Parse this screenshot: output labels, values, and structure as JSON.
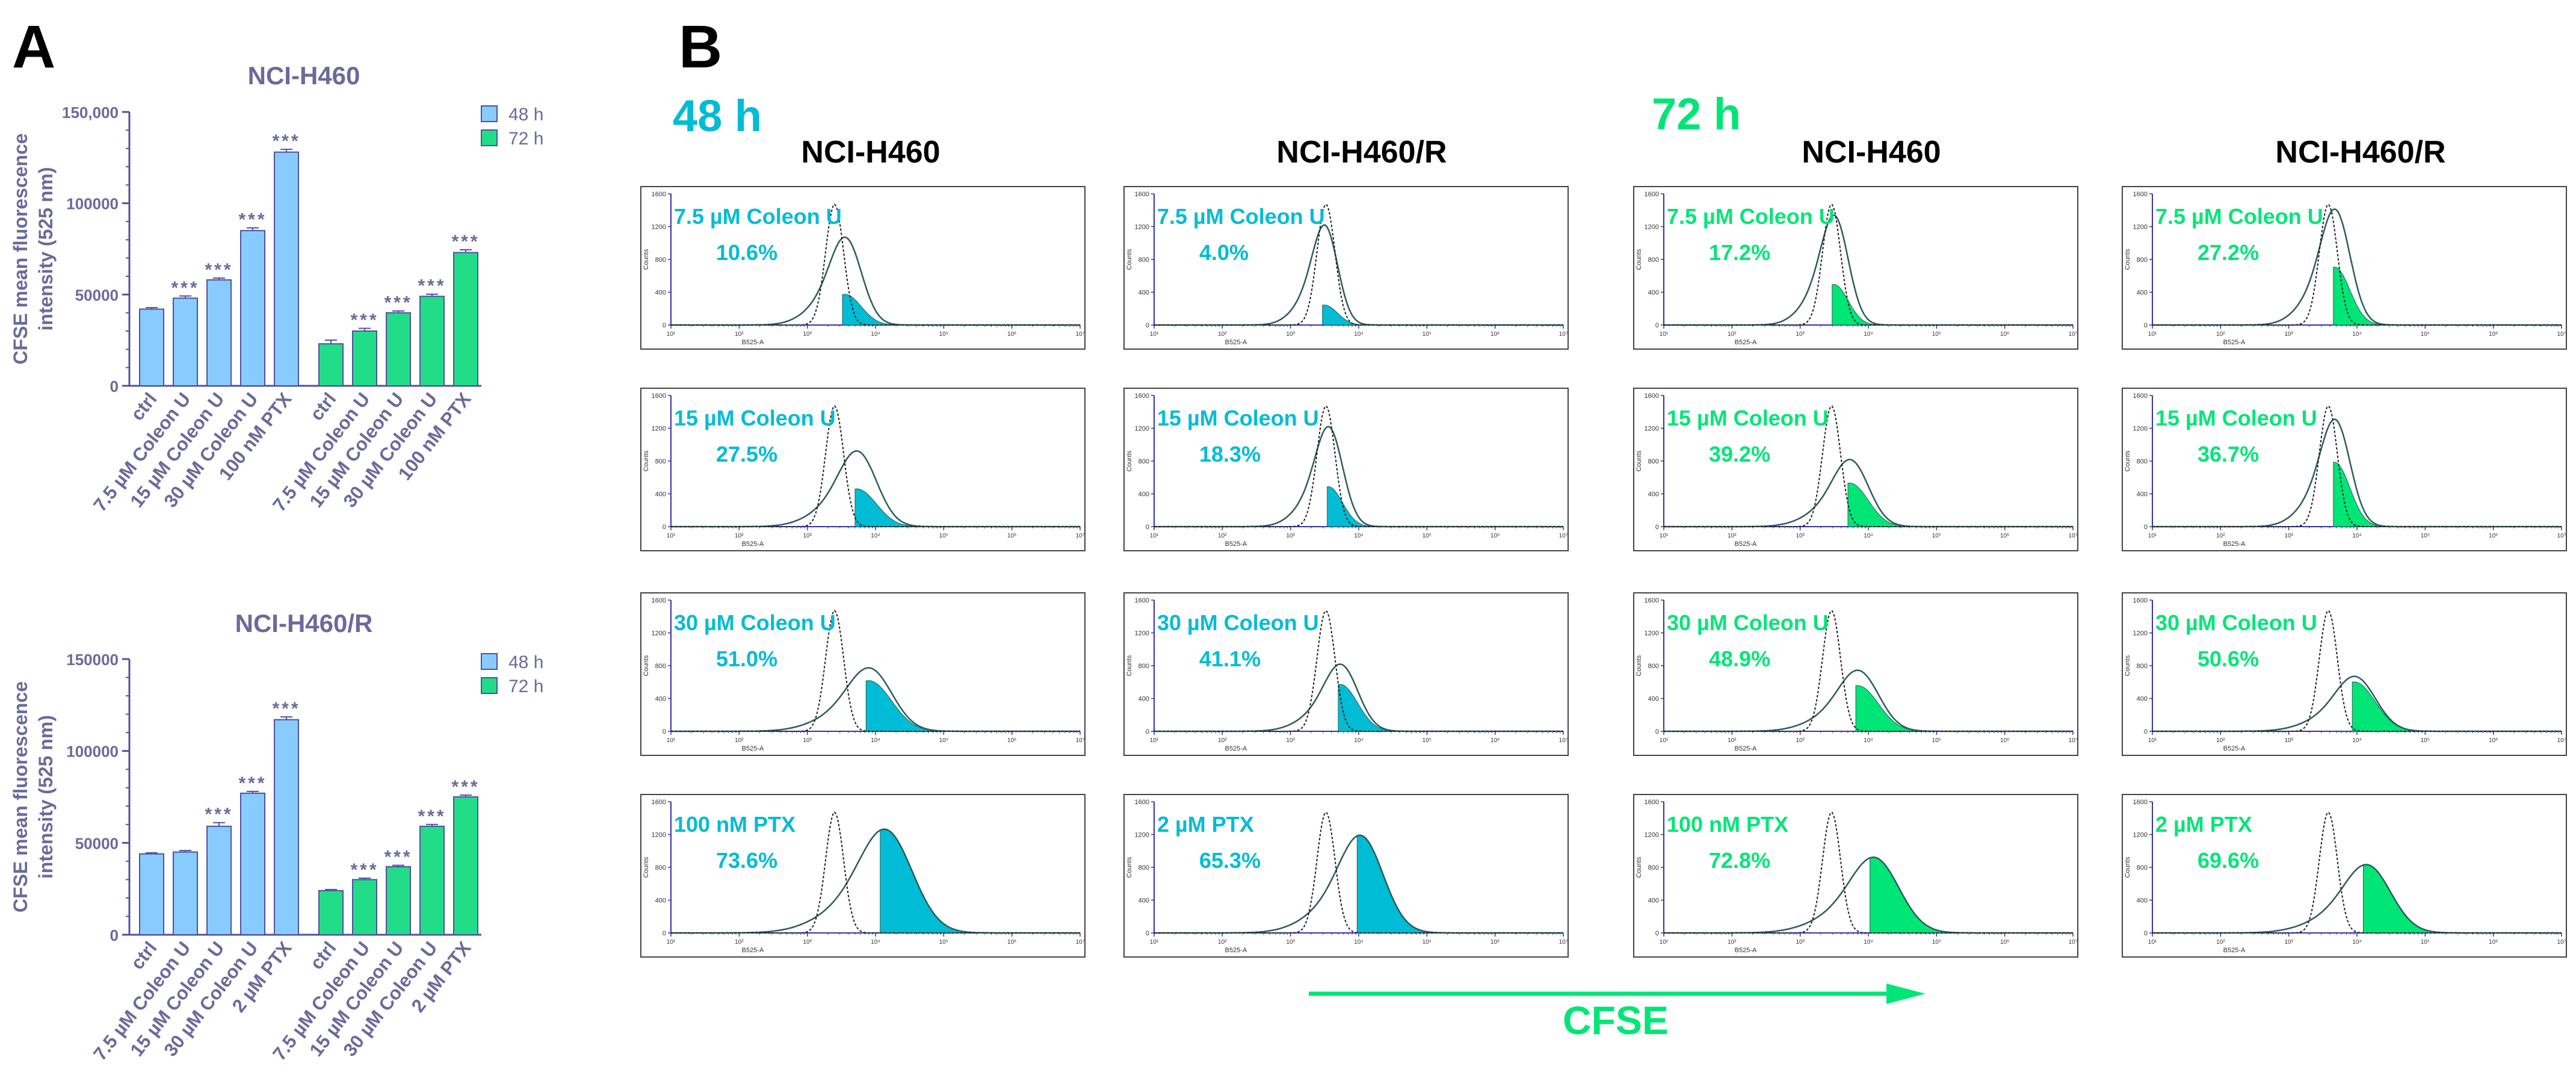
{
  "panel_a": {
    "label": "A",
    "ylabel_line1": "CFSE mean fluorescence",
    "ylabel_line2": "intensity (525 nm)",
    "legend": [
      "48 h",
      "72 h"
    ],
    "significance": "***"
  },
  "panel_b": {
    "label": "B",
    "time_labels": [
      "48 h",
      "72 h"
    ],
    "column_titles": [
      "NCI-H460",
      "NCI-H460/R",
      "NCI-H460",
      "NCI-H460/R"
    ],
    "x_axis_label": "CFSE",
    "hist_xlabel": "B525-A",
    "hist_ylabel": "Counts",
    "hist_yticks": [
      "0",
      "400",
      "800",
      "1200",
      "1600"
    ],
    "hist_xticks": [
      "10¹",
      "10²",
      "10³",
      "10⁴",
      "10⁵",
      "10⁶",
      "10⁷"
    ],
    "rows": [
      [
        {
          "treatment": "7.5 µM Coleon U",
          "percent": "10.6%",
          "ctrl_peak": 0.4,
          "treated_peak": 0.43,
          "gated": 0.3,
          "height": 0.72
        },
        {
          "treatment": "7.5 µM Coleon U",
          "percent": "4.0%",
          "ctrl_peak": 0.42,
          "treated_peak": 0.42,
          "gated": 0.15,
          "height": 0.82
        },
        {
          "treatment": "7.5 µM Coleon U",
          "percent": "17.2%",
          "ctrl_peak": 0.41,
          "treated_peak": 0.42,
          "gated": 0.32,
          "height": 0.9
        },
        {
          "treatment": "7.5 µM Coleon U",
          "percent": "27.2%",
          "ctrl_peak": 0.43,
          "treated_peak": 0.45,
          "gated": 0.45,
          "height": 0.95
        }
      ],
      [
        {
          "treatment": "15 µM Coleon U",
          "percent": "27.5%",
          "ctrl_peak": 0.4,
          "treated_peak": 0.46,
          "gated": 0.45,
          "height": 0.62
        },
        {
          "treatment": "15 µM Coleon U",
          "percent": "18.3%",
          "ctrl_peak": 0.42,
          "treated_peak": 0.43,
          "gated": 0.35,
          "height": 0.82
        },
        {
          "treatment": "15 µM Coleon U",
          "percent": "39.2%",
          "ctrl_peak": 0.41,
          "treated_peak": 0.46,
          "gated": 0.6,
          "height": 0.55
        },
        {
          "treatment": "15 µM Coleon U",
          "percent": "36.7%",
          "ctrl_peak": 0.43,
          "treated_peak": 0.45,
          "gated": 0.55,
          "height": 0.88
        }
      ],
      [
        {
          "treatment": "30 µM Coleon U",
          "percent": "51.0%",
          "ctrl_peak": 0.4,
          "treated_peak": 0.49,
          "gated": 0.75,
          "height": 0.52
        },
        {
          "treatment": "30 µM Coleon U",
          "percent": "41.1%",
          "ctrl_peak": 0.42,
          "treated_peak": 0.46,
          "gated": 0.65,
          "height": 0.55
        },
        {
          "treatment": "30 µM Coleon U",
          "percent": "48.9%",
          "ctrl_peak": 0.41,
          "treated_peak": 0.48,
          "gated": 0.7,
          "height": 0.5
        },
        {
          "treatment": "30 µM Coleon U",
          "percent": "50.6%",
          "ctrl_peak": 0.43,
          "treated_peak": 0.5,
          "gated": 0.85,
          "height": 0.45
        }
      ],
      [
        {
          "treatment": "100 nM PTX",
          "percent": "73.6%",
          "ctrl_peak": 0.4,
          "treated_peak": 0.53,
          "gated": 0.95,
          "height": 0.85
        },
        {
          "treatment": "2 µM PTX",
          "percent": "65.3%",
          "ctrl_peak": 0.42,
          "treated_peak": 0.51,
          "gated": 0.95,
          "height": 0.8
        },
        {
          "treatment": "100 nM PTX",
          "percent": "72.8%",
          "ctrl_peak": 0.41,
          "treated_peak": 0.52,
          "gated": 0.95,
          "height": 0.62
        },
        {
          "treatment": "2 µM PTX",
          "percent": "69.6%",
          "ctrl_peak": 0.43,
          "treated_peak": 0.53,
          "gated": 0.95,
          "height": 0.56
        }
      ]
    ]
  },
  "colors": {
    "text_purple": "#6a6a9c",
    "bar_48h": "#88ccff",
    "bar_72h": "#22dd88",
    "bar_edge": "#5050a0",
    "cyan": "#00bcd4",
    "green": "#00e676",
    "hist_line": "#2b5b5b",
    "axis_blue": "#3333aa"
  },
  "chart_data": [
    {
      "type": "bar",
      "title": "NCI-H460",
      "xlabel": "",
      "ylabel": "CFSE mean fluorescence intensity (525 nm)",
      "ylim": [
        0,
        150000
      ],
      "yticks": [
        "0",
        "50000",
        "100000",
        "150,000"
      ],
      "series": [
        {
          "name": "48 h",
          "categories": [
            "ctrl",
            "7.5 µM Coleon U",
            "15 µM Coleon U",
            "30 µM Coleon U",
            "100 nM PTX"
          ],
          "values": [
            42000,
            48000,
            58000,
            85000,
            128000
          ],
          "errors": [
            800,
            1200,
            1000,
            1500,
            1500
          ],
          "significant": [
            false,
            true,
            true,
            true,
            true
          ]
        },
        {
          "name": "72 h",
          "categories": [
            "ctrl",
            "7.5 µM Coleon U",
            "15 µM Coleon U",
            "30 µM Coleon U",
            "100 nM PTX"
          ],
          "values": [
            23000,
            30000,
            40000,
            49000,
            73000
          ],
          "errors": [
            2000,
            1500,
            1000,
            1200,
            1500
          ],
          "significant": [
            false,
            true,
            true,
            true,
            true
          ]
        }
      ]
    },
    {
      "type": "bar",
      "title": "NCI-H460/R",
      "xlabel": "",
      "ylabel": "CFSE mean fluorescence intensity (525 nm)",
      "ylim": [
        0,
        150000
      ],
      "yticks": [
        "0",
        "50000",
        "100000",
        "150000"
      ],
      "series": [
        {
          "name": "48 h",
          "categories": [
            "ctrl",
            "7.5 µM Coleon U",
            "15 µM Coleon U",
            "30 µM Coleon U",
            "2 µM PTX"
          ],
          "values": [
            44000,
            45000,
            59000,
            77000,
            117000
          ],
          "errors": [
            600,
            800,
            2000,
            1000,
            1500
          ],
          "significant": [
            false,
            false,
            true,
            true,
            true
          ]
        },
        {
          "name": "72 h",
          "categories": [
            "ctrl",
            "7.5 µM Coleon U",
            "15 µM Coleon U",
            "30 µM Coleon U",
            "2 µM PTX"
          ],
          "values": [
            24000,
            30000,
            37000,
            59000,
            75000
          ],
          "errors": [
            600,
            800,
            800,
            1000,
            1000
          ],
          "significant": [
            false,
            true,
            true,
            true,
            true
          ]
        }
      ]
    }
  ]
}
